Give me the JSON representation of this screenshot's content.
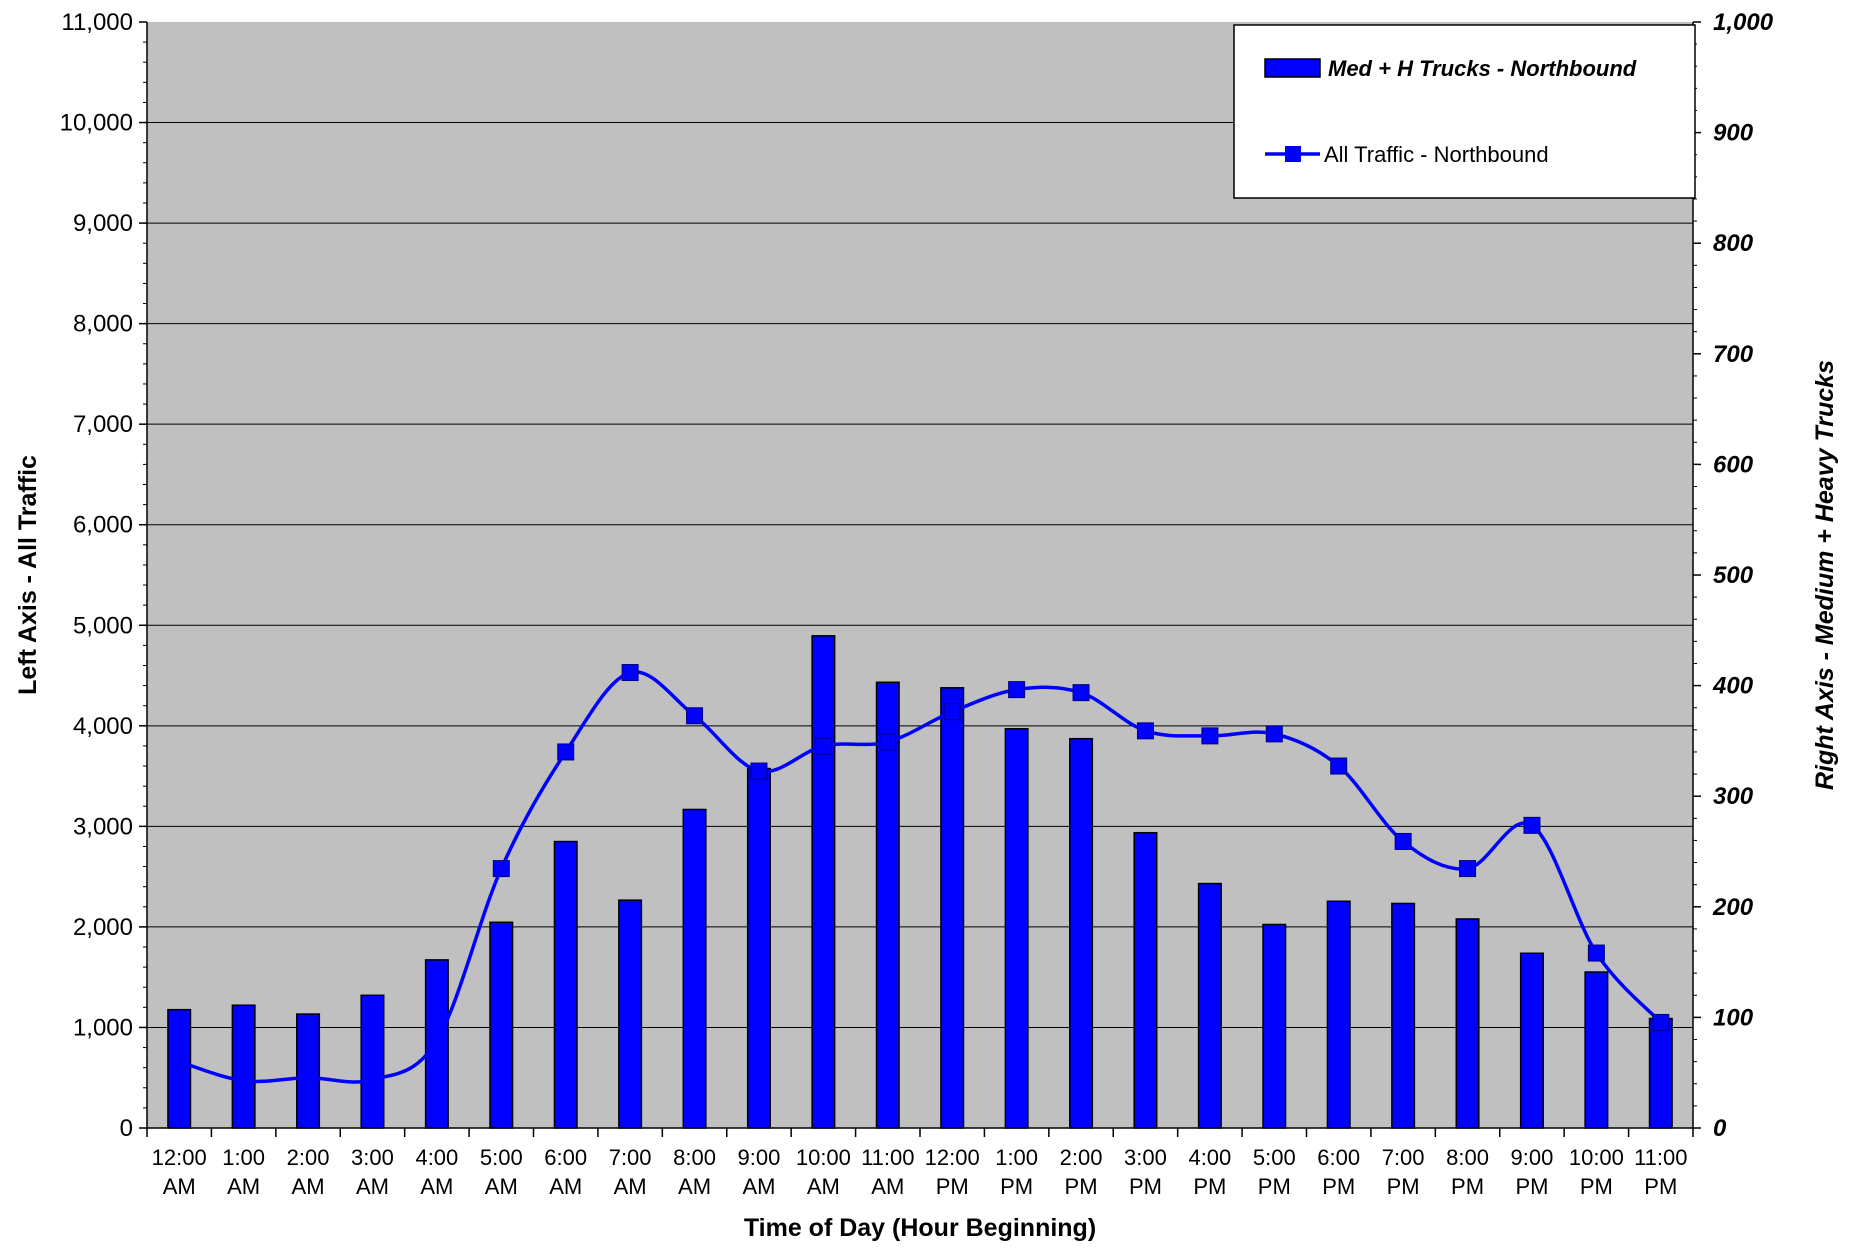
{
  "chart_data": {
    "type": "bar",
    "title": "",
    "xlabel": "Time of Day (Hour Beginning)",
    "ylabel_left": "Left Axis - All Traffic",
    "ylabel_right": "Right Axis - Medium + Heavy Trucks",
    "ylim_left": [
      0,
      11000
    ],
    "ylim_right": [
      0,
      1000
    ],
    "yticks_left": [
      "0",
      "1,000",
      "2,000",
      "3,000",
      "4,000",
      "5,000",
      "6,000",
      "7,000",
      "8,000",
      "9,000",
      "10,000",
      "11,000"
    ],
    "yticks_right": [
      "0",
      "100",
      "200",
      "300",
      "400",
      "500",
      "600",
      "700",
      "800",
      "900",
      "1,000"
    ],
    "categories": [
      {
        "line1": "12:00",
        "line2": "AM"
      },
      {
        "line1": "1:00",
        "line2": "AM"
      },
      {
        "line1": "2:00",
        "line2": "AM"
      },
      {
        "line1": "3:00",
        "line2": "AM"
      },
      {
        "line1": "4:00",
        "line2": "AM"
      },
      {
        "line1": "5:00",
        "line2": "AM"
      },
      {
        "line1": "6:00",
        "line2": "AM"
      },
      {
        "line1": "7:00",
        "line2": "AM"
      },
      {
        "line1": "8:00",
        "line2": "AM"
      },
      {
        "line1": "9:00",
        "line2": "AM"
      },
      {
        "line1": "10:00",
        "line2": "AM"
      },
      {
        "line1": "11:00",
        "line2": "AM"
      },
      {
        "line1": "12:00",
        "line2": "PM"
      },
      {
        "line1": "1:00",
        "line2": "PM"
      },
      {
        "line1": "2:00",
        "line2": "PM"
      },
      {
        "line1": "3:00",
        "line2": "PM"
      },
      {
        "line1": "4:00",
        "line2": "PM"
      },
      {
        "line1": "5:00",
        "line2": "PM"
      },
      {
        "line1": "6:00",
        "line2": "PM"
      },
      {
        "line1": "7:00",
        "line2": "PM"
      },
      {
        "line1": "8:00",
        "line2": "PM"
      },
      {
        "line1": "9:00",
        "line2": "PM"
      },
      {
        "line1": "10:00",
        "line2": "PM"
      },
      {
        "line1": "11:00",
        "line2": "PM"
      }
    ],
    "series": [
      {
        "name": "Med + H Trucks - Northbound",
        "type": "bar",
        "axis": "right",
        "values": [
          107,
          111,
          103,
          120,
          152,
          186,
          259,
          206,
          288,
          325,
          445,
          403,
          398,
          361,
          352,
          267,
          221,
          184,
          205,
          203,
          189,
          158,
          141,
          99
        ]
      },
      {
        "name": "All Traffic - Northbound",
        "type": "line",
        "axis": "left",
        "values": [
          660,
          470,
          500,
          480,
          870,
          2580,
          3740,
          4530,
          4100,
          3550,
          3800,
          3840,
          4140,
          4360,
          4330,
          3950,
          3900,
          3920,
          3600,
          2850,
          2580,
          3010,
          1740,
          1050
        ]
      }
    ],
    "colors": {
      "plot_background": "#c0c0c0",
      "bar_fill": "#0000ff",
      "line_color": "#0000ff",
      "marker_fill": "#0000ff"
    },
    "grid": true,
    "legend_position": "top-right"
  }
}
